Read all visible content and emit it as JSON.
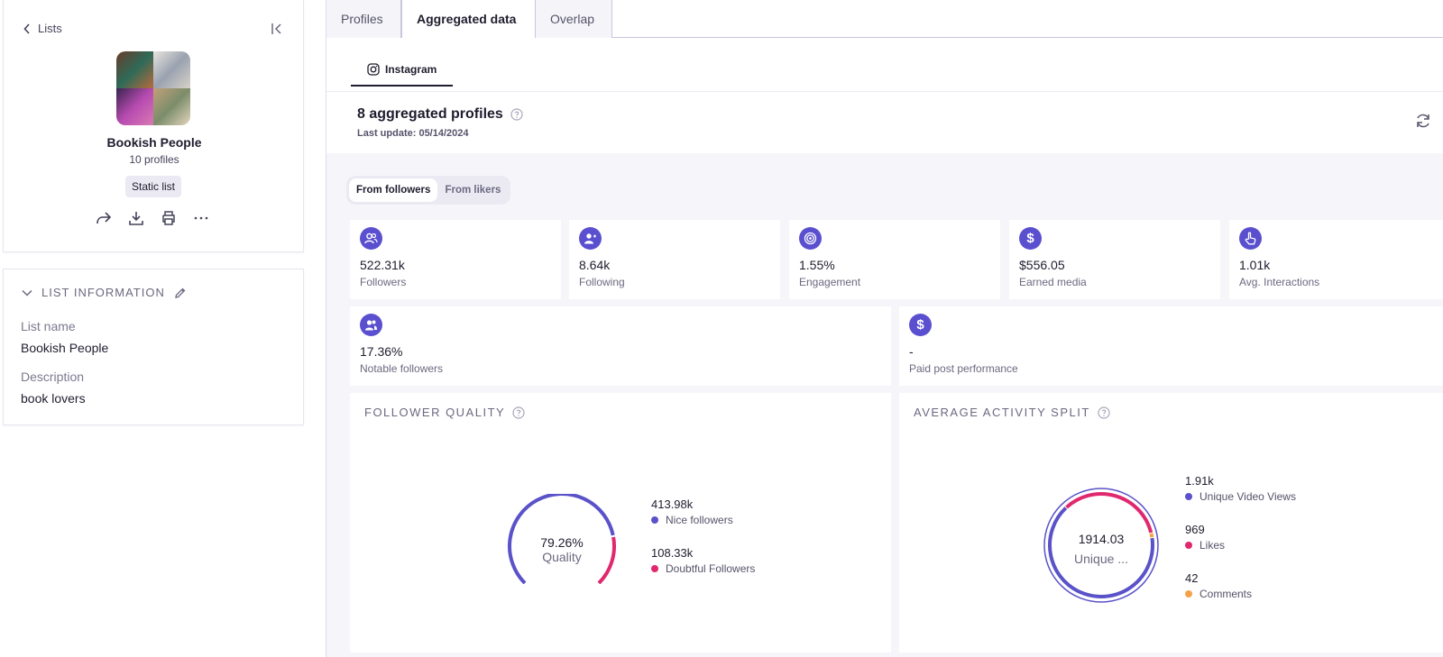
{
  "sidebar": {
    "back_label": "Lists",
    "list_title": "Bookish People",
    "profile_count": "10 profiles",
    "list_type": "Static list",
    "info_header": "LIST INFORMATION",
    "fields": [
      {
        "label": "List name",
        "value": "Bookish People"
      },
      {
        "label": "Description",
        "value": "book lovers"
      }
    ]
  },
  "tabs": [
    {
      "label": "Profiles",
      "active": false
    },
    {
      "label": "Aggregated data",
      "active": true
    },
    {
      "label": "Overlap",
      "active": false
    }
  ],
  "platform_tab": "Instagram",
  "header": {
    "title": "8 aggregated profiles",
    "last_update": "Last update: 05/14/2024"
  },
  "source_toggle": {
    "options": [
      "From followers",
      "From likers"
    ],
    "selected": "From followers"
  },
  "stats": [
    {
      "value": "522.31k",
      "label": "Followers",
      "icon": "users-icon"
    },
    {
      "value": "8.64k",
      "label": "Following",
      "icon": "user-follow-icon"
    },
    {
      "value": "1.55%",
      "label": "Engagement",
      "icon": "target-icon"
    },
    {
      "value": "$556.05",
      "label": "Earned media",
      "icon": "dollar-icon"
    },
    {
      "value": "1.01k",
      "label": "Avg. Interactions",
      "icon": "hand-pointer-icon"
    },
    {
      "value": "17.36%",
      "label": "Notable followers",
      "icon": "notable-users-icon"
    },
    {
      "value": "-",
      "label": "Paid post performance",
      "icon": "dollar-icon"
    }
  ],
  "follower_quality": {
    "title": "FOLLOWER QUALITY",
    "center_value": "79.26%",
    "center_label": "Quality",
    "quality_fraction": 0.7926,
    "items": [
      {
        "value": "413.98k",
        "label": "Nice followers",
        "color": "#5a52c9"
      },
      {
        "value": "108.33k",
        "label": "Doubtful Followers",
        "color": "#e0286f"
      }
    ]
  },
  "activity_split": {
    "title": "AVERAGE ACTIVITY SPLIT",
    "center_value": "1914.03",
    "center_label": "Unique ...",
    "items": [
      {
        "value": "1.91k",
        "label": "Unique Video Views",
        "color": "#5a52c9",
        "amount": 1914.03
      },
      {
        "value": "969",
        "label": "Likes",
        "color": "#e0286f",
        "amount": 969
      },
      {
        "value": "42",
        "label": "Comments",
        "color": "#f4a24a",
        "amount": 42
      }
    ]
  },
  "colors": {
    "accent": "#5a4fcf",
    "pink": "#e0286f",
    "orange": "#f4a24a"
  }
}
